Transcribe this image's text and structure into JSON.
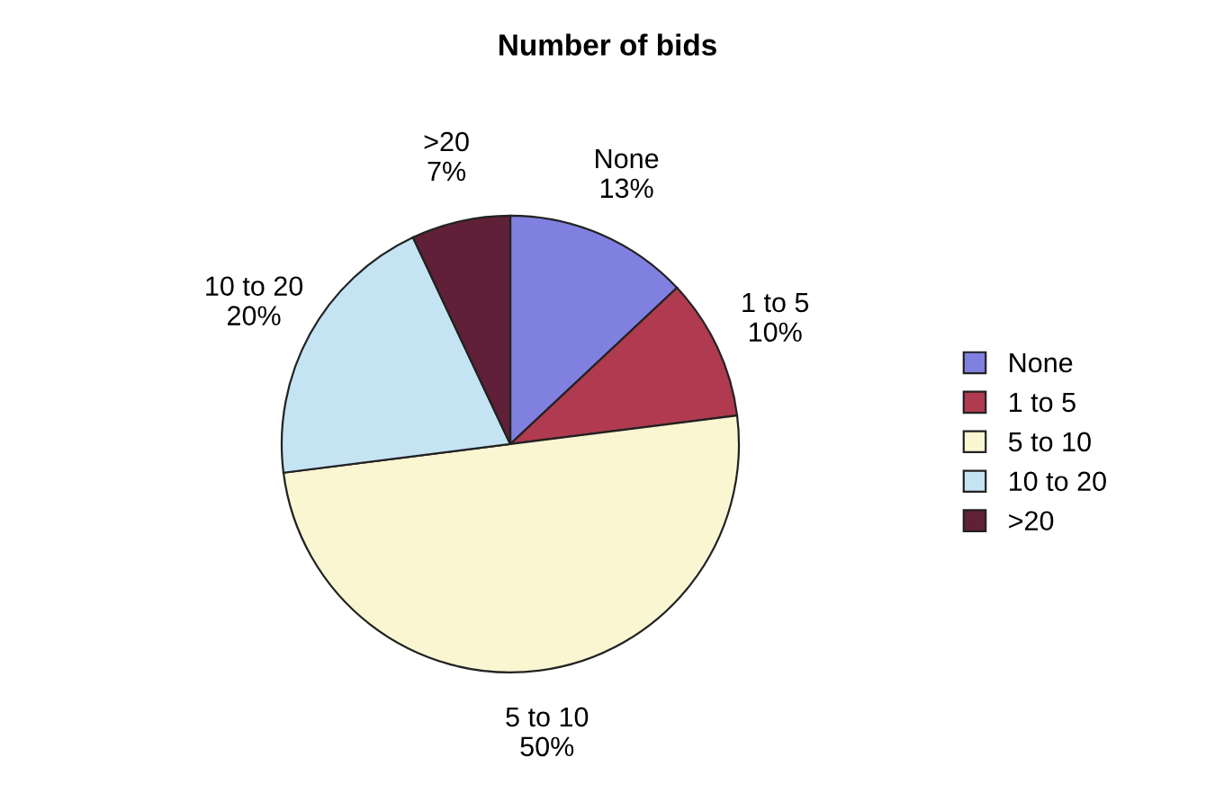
{
  "chart_data": {
    "type": "pie",
    "title": "Number of bids",
    "categories": [
      "None",
      "1 to 5",
      "5 to 10",
      "10 to 20",
      ">20"
    ],
    "values": [
      13,
      10,
      50,
      20,
      7
    ],
    "value_labels": [
      "13%",
      "10%",
      "50%",
      "20%",
      "7%"
    ],
    "colors": [
      "#8080e0",
      "#b03a50",
      "#faf6d2",
      "#c4e4f4",
      "#602038"
    ],
    "legend": "right"
  }
}
